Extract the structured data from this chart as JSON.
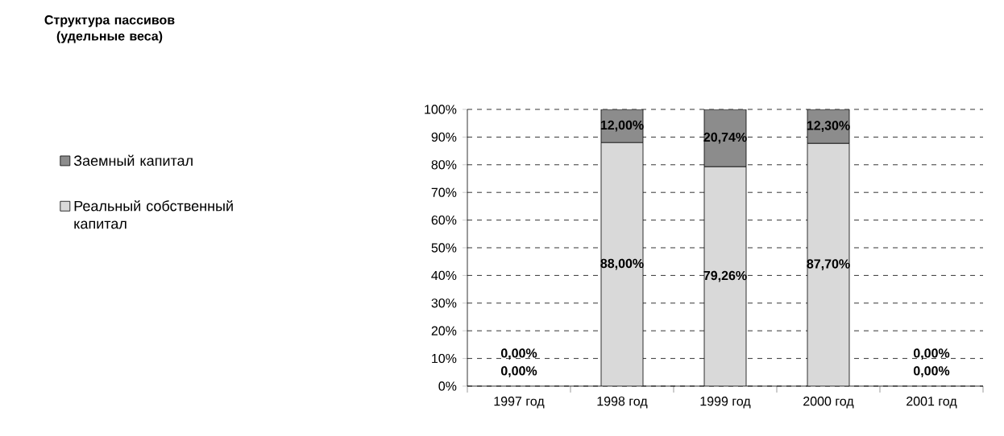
{
  "chart_data": {
    "type": "bar",
    "title": "Структура пассивов (удельные веса)",
    "categories": [
      "1997 год",
      "1998 год",
      "1999 год",
      "2000 год",
      "2001 год"
    ],
    "stacked": true,
    "legend": "left",
    "grid": "y",
    "ylim": [
      0,
      100
    ],
    "yticks": [
      {
        "value": 0,
        "label": "0%"
      },
      {
        "value": 10,
        "label": "10%"
      },
      {
        "value": 20,
        "label": "20%"
      },
      {
        "value": 30,
        "label": "30%"
      },
      {
        "value": 40,
        "label": "40%"
      },
      {
        "value": 50,
        "label": "50%"
      },
      {
        "value": 60,
        "label": "60%"
      },
      {
        "value": 70,
        "label": "70%"
      },
      {
        "value": 80,
        "label": "80%"
      },
      {
        "value": 90,
        "label": "90%"
      },
      {
        "value": 100,
        "label": "100%"
      }
    ],
    "series": [
      {
        "name": "Реальный собственный капитал",
        "color": "#d9d9d9",
        "values": [
          0,
          88,
          79.26,
          87.7,
          0
        ],
        "value_labels": [
          "0,00%",
          "88,00%",
          "79,26%",
          "87,70%",
          "0,00%"
        ]
      },
      {
        "name": "Заемный капитал",
        "color": "#8c8c8c",
        "values": [
          0,
          12,
          20.74,
          12.3,
          0
        ],
        "value_labels": [
          "0,00%",
          "12,00%",
          "20,74%",
          "12,30%",
          "0,00%"
        ]
      }
    ]
  }
}
